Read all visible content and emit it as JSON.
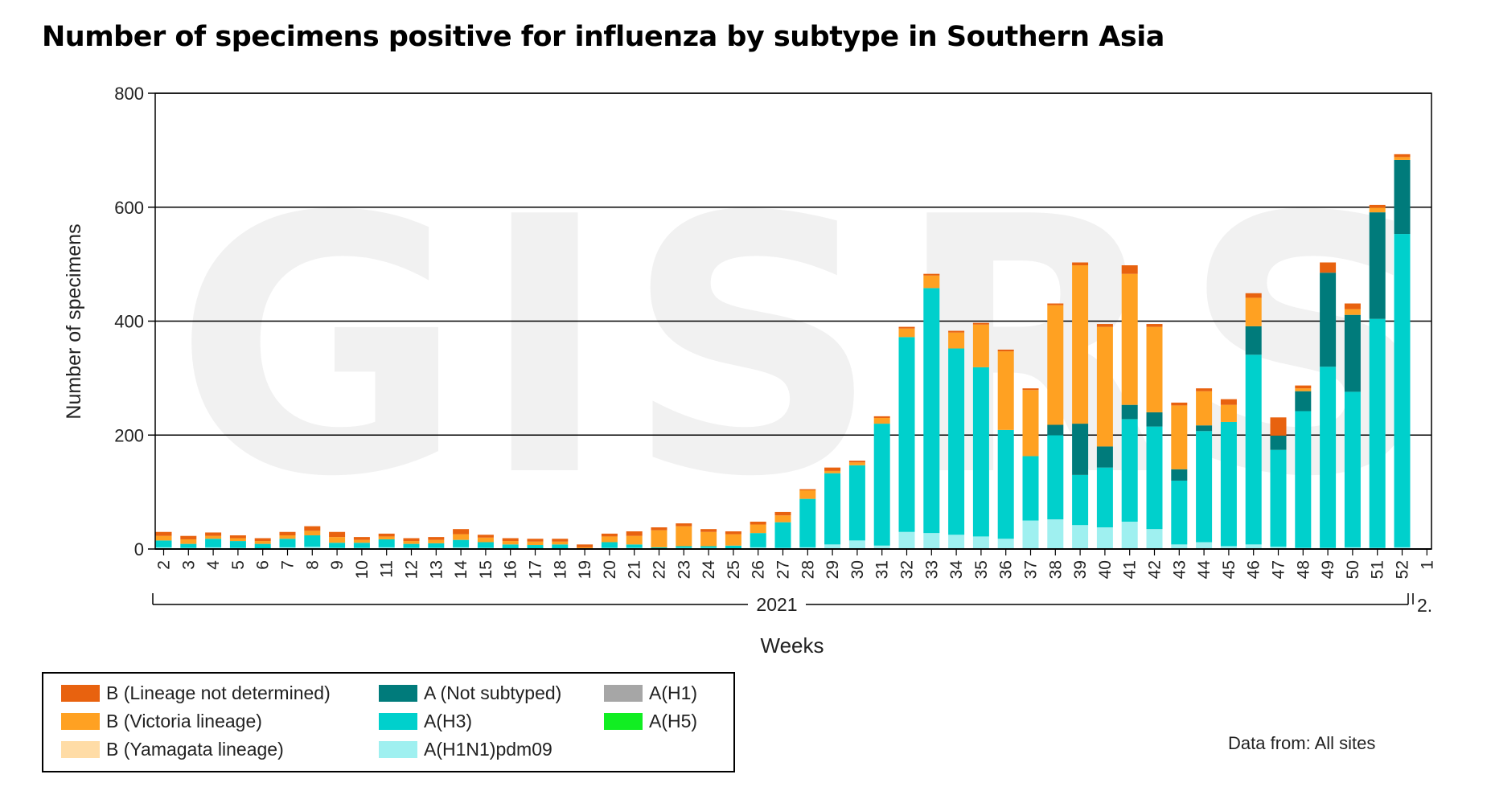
{
  "title": "Number of specimens positive for influenza by subtype in Southern Asia",
  "source_note": "Data from: All sites",
  "watermark": "GISRS",
  "legend": [
    {
      "label": "B (Lineage not determined)",
      "color": "#e8620f"
    },
    {
      "label": "A (Not subtyped)",
      "color": "#007b7b"
    },
    {
      "label": "A(H1)",
      "color": "#a6a6a6"
    },
    {
      "label": "B (Victoria lineage)",
      "color": "#ffa122"
    },
    {
      "label": "A(H3)",
      "color": "#00d0cc"
    },
    {
      "label": "A(H5)",
      "color": "#11ee22"
    },
    {
      "label": "B (Yamagata lineage)",
      "color": "#ffdca6"
    },
    {
      "label": "A(H1N1)pdm09",
      "color": "#9ff0f0"
    }
  ],
  "chart_data": {
    "type": "bar",
    "stacked": true,
    "title": "Number of specimens positive for influenza by subtype in Southern Asia",
    "xlabel": "Weeks",
    "ylabel": "Number of specimens",
    "ylim": [
      0,
      800
    ],
    "yticks": [
      0,
      200,
      400,
      600,
      800
    ],
    "grid": true,
    "year_labels": [
      "2021",
      "2."
    ],
    "categories": [
      "2",
      "3",
      "4",
      "5",
      "6",
      "7",
      "8",
      "9",
      "10",
      "11",
      "12",
      "13",
      "14",
      "15",
      "16",
      "17",
      "18",
      "19",
      "20",
      "21",
      "22",
      "23",
      "24",
      "25",
      "26",
      "27",
      "28",
      "29",
      "30",
      "31",
      "32",
      "33",
      "34",
      "35",
      "36",
      "37",
      "38",
      "39",
      "40",
      "41",
      "42",
      "43",
      "44",
      "45",
      "46",
      "47",
      "48",
      "49",
      "50",
      "51",
      "52",
      "1"
    ],
    "series": [
      {
        "name": "A(H1N1)pdm09",
        "color": "#9ff0f0",
        "values": [
          3,
          2,
          3,
          2,
          1,
          3,
          4,
          2,
          2,
          3,
          2,
          2,
          3,
          2,
          1,
          1,
          1,
          0,
          2,
          2,
          1,
          2,
          2,
          1,
          3,
          2,
          3,
          8,
          15,
          6,
          30,
          28,
          25,
          22,
          18,
          50,
          52,
          42,
          38,
          48,
          35,
          8,
          12,
          5,
          8,
          4,
          2,
          2,
          3,
          2,
          3,
          0
        ]
      },
      {
        "name": "A(H3)",
        "color": "#00d0cc",
        "values": [
          12,
          7,
          15,
          12,
          8,
          15,
          20,
          9,
          9,
          14,
          7,
          8,
          13,
          10,
          7,
          6,
          7,
          0,
          10,
          6,
          2,
          3,
          3,
          5,
          25,
          45,
          85,
          125,
          132,
          214,
          342,
          430,
          327,
          297,
          191,
          113,
          148,
          88,
          105,
          180,
          180,
          112,
          195,
          218,
          333,
          170,
          240,
          318,
          273,
          402,
          550,
          0
        ]
      },
      {
        "name": "A (Not subtyped)",
        "color": "#007b7b",
        "values": [
          0,
          0,
          0,
          0,
          0,
          0,
          0,
          0,
          0,
          0,
          0,
          0,
          0,
          0,
          0,
          0,
          0,
          0,
          0,
          0,
          0,
          0,
          0,
          0,
          0,
          0,
          0,
          0,
          0,
          0,
          0,
          0,
          0,
          0,
          0,
          0,
          18,
          90,
          37,
          25,
          25,
          20,
          10,
          0,
          50,
          25,
          35,
          165,
          135,
          187,
          130,
          0
        ]
      },
      {
        "name": "B (Yamagata lineage)",
        "color": "#ffdca6",
        "values": [
          0,
          0,
          0,
          0,
          0,
          0,
          0,
          0,
          0,
          0,
          0,
          0,
          0,
          0,
          0,
          0,
          0,
          0,
          0,
          0,
          0,
          0,
          0,
          0,
          0,
          0,
          0,
          0,
          0,
          0,
          0,
          0,
          0,
          0,
          0,
          0,
          0,
          0,
          0,
          0,
          0,
          0,
          0,
          0,
          0,
          0,
          0,
          0,
          0,
          0,
          0,
          0
        ]
      },
      {
        "name": "B (Victoria lineage)",
        "color": "#ffa122",
        "values": [
          8,
          8,
          5,
          5,
          5,
          6,
          8,
          10,
          5,
          5,
          5,
          6,
          10,
          8,
          6,
          6,
          5,
          3,
          10,
          15,
          30,
          35,
          25,
          20,
          15,
          12,
          15,
          4,
          5,
          10,
          15,
          22,
          28,
          75,
          138,
          116,
          210,
          278,
          210,
          230,
          150,
          112,
          60,
          30,
          50,
          0,
          5,
          0,
          10,
          8,
          5,
          0
        ]
      },
      {
        "name": "B (Lineage not determined)",
        "color": "#e8620f",
        "values": [
          7,
          6,
          6,
          5,
          5,
          6,
          8,
          9,
          5,
          5,
          5,
          5,
          9,
          5,
          5,
          5,
          5,
          5,
          5,
          8,
          5,
          5,
          5,
          5,
          5,
          6,
          2,
          6,
          3,
          3,
          3,
          3,
          3,
          3,
          3,
          3,
          3,
          5,
          5,
          15,
          5,
          5,
          5,
          10,
          8,
          32,
          5,
          18,
          10,
          5,
          5,
          0
        ]
      },
      {
        "name": "A(H1)",
        "color": "#a6a6a6",
        "values": [
          0,
          0,
          0,
          0,
          0,
          0,
          0,
          0,
          0,
          0,
          0,
          0,
          0,
          0,
          0,
          0,
          0,
          0,
          0,
          0,
          0,
          0,
          0,
          0,
          0,
          0,
          0,
          0,
          0,
          0,
          0,
          0,
          0,
          0,
          0,
          0,
          0,
          0,
          0,
          0,
          0,
          0,
          0,
          0,
          0,
          0,
          0,
          0,
          0,
          0,
          0,
          0
        ]
      },
      {
        "name": "A(H5)",
        "color": "#11ee22",
        "values": [
          0,
          0,
          0,
          0,
          0,
          0,
          0,
          0,
          0,
          0,
          0,
          0,
          0,
          0,
          0,
          0,
          0,
          0,
          0,
          0,
          0,
          0,
          0,
          0,
          0,
          0,
          0,
          0,
          0,
          0,
          0,
          0,
          0,
          0,
          0,
          0,
          0,
          0,
          0,
          0,
          0,
          0,
          0,
          0,
          0,
          0,
          0,
          0,
          0,
          0,
          0,
          0
        ]
      }
    ]
  }
}
